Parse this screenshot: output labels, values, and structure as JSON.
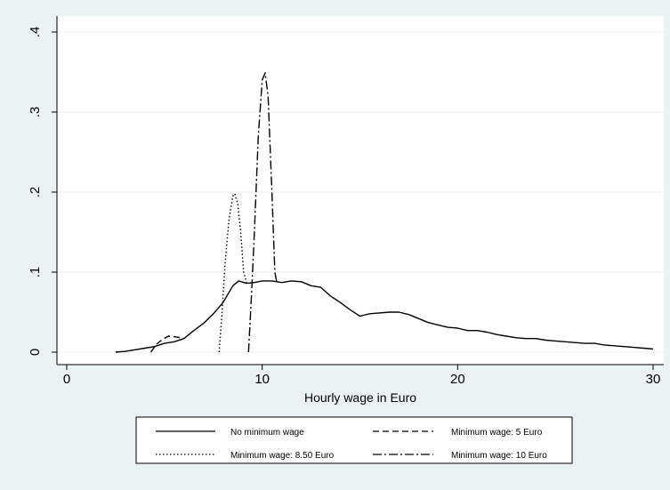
{
  "chart_data": {
    "type": "line",
    "title": "",
    "xlabel": "Hourly wage in Euro",
    "ylabel": "",
    "xlim": [
      0,
      30
    ],
    "ylim": [
      0,
      0.4
    ],
    "x_ticks": [
      0,
      10,
      20,
      30
    ],
    "x_tick_labels": [
      "0",
      "10",
      "20",
      "30"
    ],
    "y_ticks": [
      0,
      0.1,
      0.2,
      0.3,
      0.4
    ],
    "y_tick_labels": [
      "0",
      ".1",
      ".2",
      ".3",
      ".4"
    ],
    "grid": "horizontal",
    "legend_position": "bottom",
    "series": [
      {
        "name": "No minimum wage",
        "style": "solid",
        "points": [
          [
            2.5,
            0.0
          ],
          [
            3.0,
            0.001
          ],
          [
            3.5,
            0.003
          ],
          [
            4.0,
            0.005
          ],
          [
            4.5,
            0.007
          ],
          [
            5.0,
            0.011
          ],
          [
            5.5,
            0.013
          ],
          [
            6.0,
            0.017
          ],
          [
            6.5,
            0.027
          ],
          [
            7.0,
            0.036
          ],
          [
            7.5,
            0.048
          ],
          [
            8.0,
            0.062
          ],
          [
            8.5,
            0.083
          ],
          [
            8.8,
            0.089
          ],
          [
            9.2,
            0.086
          ],
          [
            9.6,
            0.087
          ],
          [
            10.0,
            0.089
          ],
          [
            10.5,
            0.089
          ],
          [
            11.0,
            0.087
          ],
          [
            11.5,
            0.089
          ],
          [
            12.0,
            0.088
          ],
          [
            12.5,
            0.083
          ],
          [
            13.0,
            0.081
          ],
          [
            13.5,
            0.07
          ],
          [
            14.0,
            0.062
          ],
          [
            14.5,
            0.053
          ],
          [
            15.0,
            0.045
          ],
          [
            15.5,
            0.048
          ],
          [
            16.0,
            0.049
          ],
          [
            16.5,
            0.05
          ],
          [
            17.0,
            0.05
          ],
          [
            17.5,
            0.047
          ],
          [
            18.0,
            0.042
          ],
          [
            18.5,
            0.037
          ],
          [
            19.0,
            0.034
          ],
          [
            19.5,
            0.031
          ],
          [
            20.0,
            0.03
          ],
          [
            20.5,
            0.027
          ],
          [
            21.0,
            0.027
          ],
          [
            21.5,
            0.025
          ],
          [
            22.0,
            0.022
          ],
          [
            22.5,
            0.02
          ],
          [
            23.0,
            0.018
          ],
          [
            23.5,
            0.017
          ],
          [
            24.0,
            0.017
          ],
          [
            24.5,
            0.015
          ],
          [
            25.0,
            0.014
          ],
          [
            25.5,
            0.013
          ],
          [
            26.0,
            0.012
          ],
          [
            26.5,
            0.011
          ],
          [
            27.0,
            0.011
          ],
          [
            27.5,
            0.009
          ],
          [
            28.0,
            0.008
          ],
          [
            28.5,
            0.007
          ],
          [
            29.0,
            0.006
          ],
          [
            29.5,
            0.005
          ],
          [
            30.0,
            0.004
          ]
        ]
      },
      {
        "name": "Minimum wage: 5 Euro",
        "style": "dashed",
        "points": [
          [
            4.3,
            0.0
          ],
          [
            4.6,
            0.01
          ],
          [
            4.9,
            0.016
          ],
          [
            5.2,
            0.02
          ],
          [
            5.6,
            0.019
          ],
          [
            6.0,
            0.017
          ]
        ]
      },
      {
        "name": "Minimum wage: 8.50 Euro",
        "style": "dotted",
        "points": [
          [
            7.8,
            0.0
          ],
          [
            7.95,
            0.05
          ],
          [
            8.1,
            0.11
          ],
          [
            8.3,
            0.165
          ],
          [
            8.5,
            0.195
          ],
          [
            8.6,
            0.198
          ],
          [
            8.75,
            0.185
          ],
          [
            8.9,
            0.15
          ],
          [
            9.05,
            0.1
          ],
          [
            9.2,
            0.087
          ]
        ]
      },
      {
        "name": "Minimum wage: 10 Euro",
        "style": "dashdot",
        "points": [
          [
            9.3,
            0.0
          ],
          [
            9.45,
            0.07
          ],
          [
            9.6,
            0.15
          ],
          [
            9.8,
            0.27
          ],
          [
            10.0,
            0.34
          ],
          [
            10.15,
            0.349
          ],
          [
            10.3,
            0.32
          ],
          [
            10.5,
            0.2
          ],
          [
            10.65,
            0.1
          ],
          [
            10.75,
            0.087
          ]
        ]
      }
    ]
  },
  "colors": {
    "page_background": "#eaf2f3",
    "plot_background": "#ffffff",
    "line": "#000000",
    "grid": "#eaf2f3"
  }
}
